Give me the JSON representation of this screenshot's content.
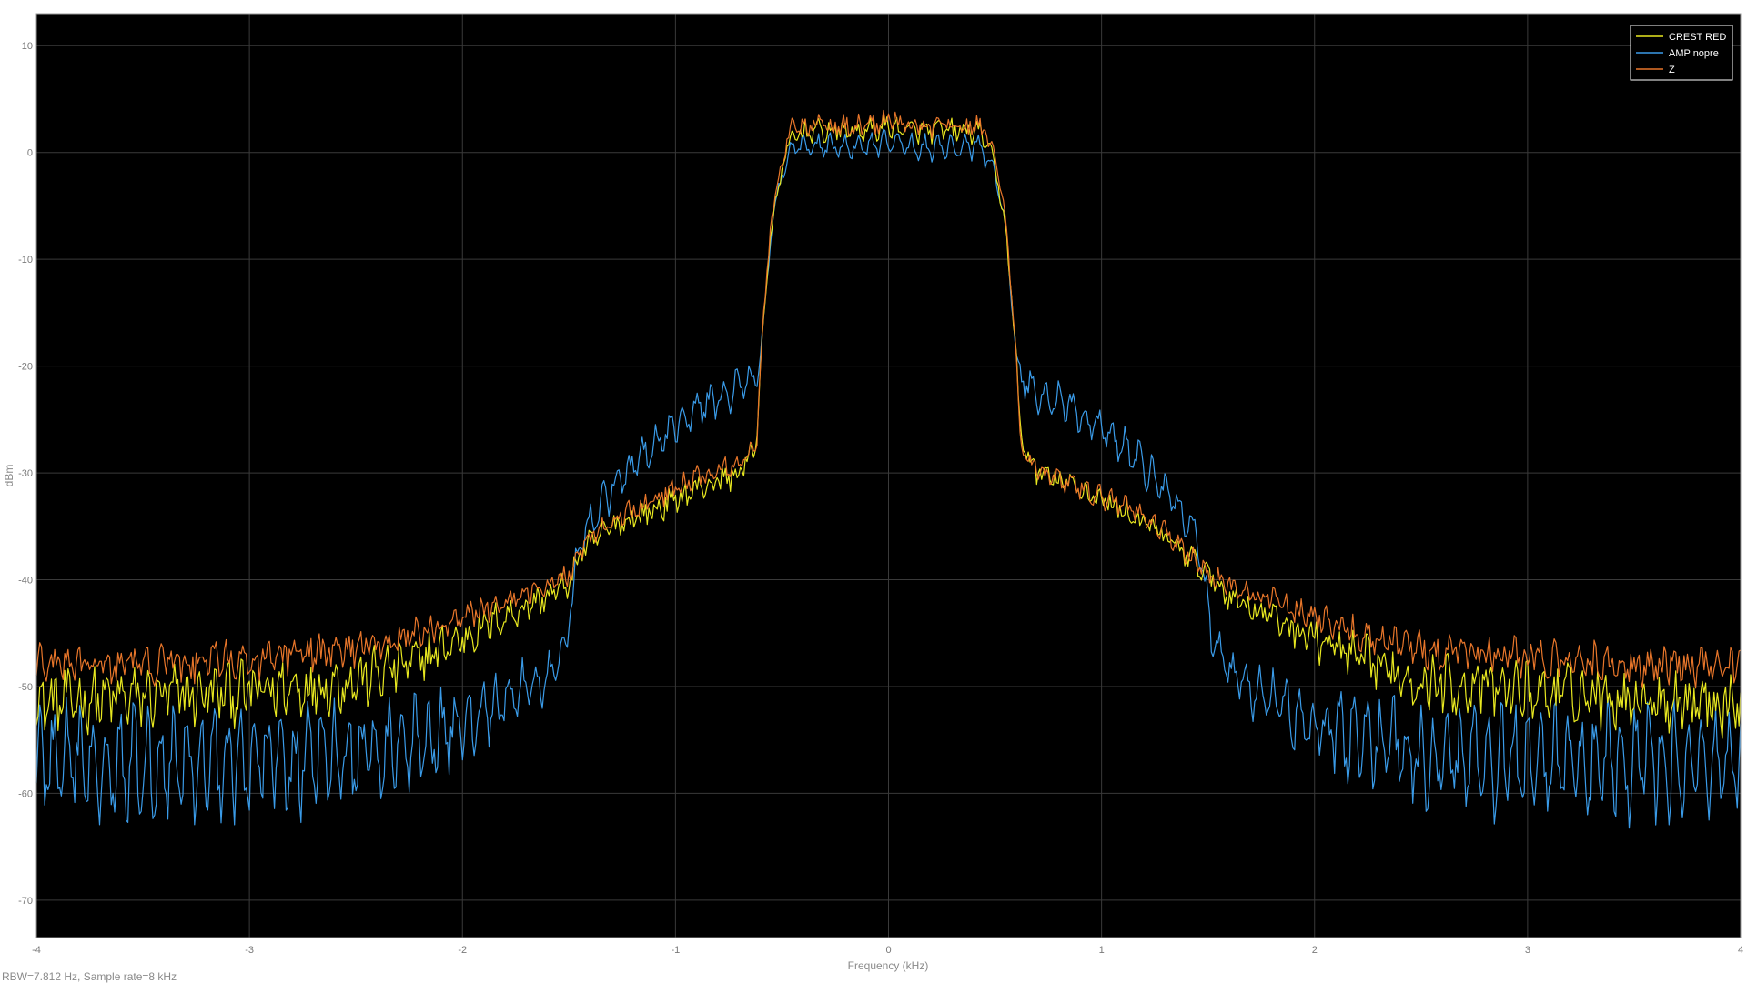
{
  "status_text": "RBW=7.812 Hz, Sample rate=8 kHz",
  "colors": {
    "background": "#000000",
    "grid": "#3a3a3a",
    "frame": "#9a9a9a",
    "tick_text": "#7a7a7a",
    "legend_border": "#ffffff"
  },
  "chart_data": {
    "type": "line",
    "title": "",
    "xlabel": "Frequency (kHz)",
    "ylabel": "dBm",
    "xlim": [
      -4,
      4
    ],
    "ylim": [
      -73.5,
      13
    ],
    "x_ticks": [
      -4,
      -3,
      -2,
      -1,
      0,
      1,
      2,
      3,
      4
    ],
    "y_ticks": [
      10,
      0,
      -10,
      -20,
      -30,
      -40,
      -50,
      -60,
      -70
    ],
    "grid": true,
    "legend_position": "top-right",
    "series": [
      {
        "name": "CREST RED",
        "color": "#e8e820",
        "x": [
          -4.0,
          -3.5,
          -3.0,
          -2.5,
          -2.2,
          -2.0,
          -1.8,
          -1.6,
          -1.5,
          -1.45,
          -1.3,
          -1.1,
          -0.9,
          -0.7,
          -0.62,
          -0.6,
          -0.55,
          -0.5,
          -0.45,
          -0.4,
          -0.3,
          -0.2,
          -0.1,
          0.0,
          0.1,
          0.2,
          0.3,
          0.4,
          0.45,
          0.5,
          0.55,
          0.6,
          0.62,
          0.7,
          0.9,
          1.1,
          1.3,
          1.45,
          1.5,
          1.6,
          1.8,
          2.0,
          2.2,
          2.5,
          3.0,
          3.5,
          4.0
        ],
        "values": [
          -51.5,
          -51.0,
          -50.5,
          -49.5,
          -47.5,
          -45.5,
          -43.5,
          -41.5,
          -40.5,
          -37.5,
          -35,
          -33.5,
          -31.5,
          -30,
          -27.5,
          -19,
          -7,
          -1.5,
          1.5,
          2.0,
          2.0,
          2.0,
          2.0,
          2.5,
          2.0,
          2.0,
          2.0,
          2.0,
          1.5,
          -1.5,
          -7,
          -19,
          -27,
          -30,
          -31.5,
          -33.5,
          -36,
          -38.5,
          -39.5,
          -41.5,
          -43.5,
          -45.5,
          -47.5,
          -49.5,
          -50.5,
          -51.0,
          -51.5
        ],
        "amplitude": [
          2.8,
          2.8,
          2.8,
          2.6,
          2.2,
          1.8,
          1.5,
          1.3,
          1.2,
          1.2,
          1.2,
          1.2,
          1.2,
          1.2,
          1.0,
          0.6,
          0.6,
          0.8,
          1.0,
          1.0,
          1.0,
          1.0,
          1.0,
          1.0,
          1.0,
          1.0,
          1.0,
          1.0,
          1.0,
          0.8,
          0.6,
          0.6,
          1.0,
          1.2,
          1.2,
          1.2,
          1.2,
          1.2,
          1.2,
          1.3,
          1.5,
          1.8,
          2.2,
          2.6,
          2.8,
          2.8,
          2.8
        ]
      },
      {
        "name": "AMP nopre",
        "color": "#3a9be8",
        "x": [
          -4.0,
          -3.5,
          -3.0,
          -2.5,
          -2.2,
          -2.0,
          -1.8,
          -1.6,
          -1.52,
          -1.45,
          -1.3,
          -1.1,
          -0.9,
          -0.7,
          -0.62,
          -0.6,
          -0.55,
          -0.5,
          -0.45,
          -0.4,
          -0.3,
          -0.2,
          -0.1,
          0.0,
          0.1,
          0.2,
          0.3,
          0.4,
          0.45,
          0.5,
          0.55,
          0.6,
          0.62,
          0.7,
          0.9,
          1.1,
          1.3,
          1.45,
          1.52,
          1.6,
          1.8,
          2.0,
          2.2,
          2.5,
          3.0,
          3.5,
          4.0
        ],
        "values": [
          -57,
          -57,
          -57,
          -56.5,
          -55,
          -53.5,
          -51.5,
          -49,
          -46.5,
          -36.5,
          -31.5,
          -27.5,
          -24,
          -22,
          -21,
          -19,
          -7,
          -2,
          0.5,
          0.5,
          0.5,
          0.5,
          0.5,
          1.0,
          0.5,
          0.5,
          0.5,
          0.5,
          0,
          -2,
          -7,
          -19,
          -21,
          -22.5,
          -24.5,
          -27.5,
          -31.5,
          -36,
          -45.5,
          -48.5,
          -51.5,
          -53.5,
          -55,
          -56.5,
          -57,
          -57,
          -57
        ],
        "amplitude": [
          4.5,
          4.5,
          4.5,
          4.0,
          3.5,
          3.0,
          2.5,
          2.0,
          1.5,
          1.5,
          1.5,
          1.5,
          1.5,
          1.5,
          1.2,
          0.6,
          0.6,
          0.8,
          1.0,
          1.0,
          1.0,
          1.0,
          1.0,
          1.0,
          1.0,
          1.0,
          1.0,
          1.0,
          1.0,
          0.8,
          0.6,
          0.6,
          1.2,
          1.5,
          1.5,
          1.5,
          1.5,
          1.5,
          1.5,
          2.0,
          2.5,
          3.0,
          3.5,
          4.0,
          4.5,
          4.5,
          4.5
        ]
      },
      {
        "name": "Z",
        "color": "#e8762a",
        "x": [
          -4.0,
          -3.5,
          -3.0,
          -2.5,
          -2.2,
          -2.0,
          -1.8,
          -1.6,
          -1.5,
          -1.45,
          -1.3,
          -1.1,
          -0.9,
          -0.7,
          -0.62,
          -0.6,
          -0.55,
          -0.5,
          -0.45,
          -0.4,
          -0.3,
          -0.2,
          -0.1,
          0.0,
          0.1,
          0.2,
          0.3,
          0.4,
          0.45,
          0.5,
          0.55,
          0.6,
          0.62,
          0.7,
          0.9,
          1.1,
          1.3,
          1.45,
          1.5,
          1.6,
          1.8,
          2.0,
          2.2,
          2.5,
          3.0,
          3.5,
          4.0
        ],
        "values": [
          -48,
          -48,
          -47.5,
          -46.5,
          -45,
          -43.5,
          -42,
          -40.5,
          -39.5,
          -37,
          -34.5,
          -32.5,
          -30.5,
          -29,
          -27.5,
          -19,
          -6,
          -0.5,
          2.5,
          2.5,
          2.5,
          2.5,
          2.5,
          3.0,
          2.5,
          2.5,
          2.5,
          2.5,
          2.0,
          -0.5,
          -6,
          -19,
          -27.5,
          -30,
          -31.5,
          -33,
          -35.5,
          -38.5,
          -39.5,
          -40.5,
          -42,
          -43.5,
          -45,
          -46.5,
          -47.5,
          -48,
          -48
        ],
        "amplitude": [
          1.8,
          1.8,
          1.8,
          1.6,
          1.4,
          1.2,
          1.1,
          1.0,
          1.0,
          1.0,
          1.0,
          1.0,
          1.0,
          1.0,
          1.0,
          0.6,
          0.6,
          0.8,
          1.0,
          1.0,
          1.0,
          1.0,
          1.0,
          1.0,
          1.0,
          1.0,
          1.0,
          1.0,
          1.0,
          0.8,
          0.6,
          0.6,
          1.0,
          1.0,
          1.0,
          1.0,
          1.0,
          1.0,
          1.0,
          1.0,
          1.1,
          1.2,
          1.4,
          1.6,
          1.8,
          1.8,
          1.8
        ]
      }
    ]
  }
}
